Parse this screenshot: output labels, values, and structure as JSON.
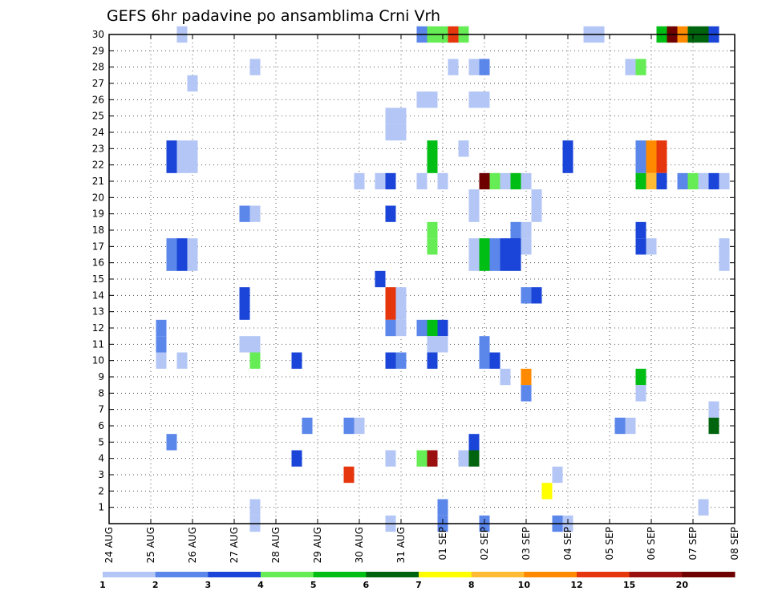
{
  "chart_data": {
    "type": "heatmap",
    "title": "GEFS 6hr padavine po ansamblima Crni Vrh",
    "x_tick_labels": [
      "24 AUG",
      "25 AUG",
      "26 AUG",
      "27 AUG",
      "28 AUG",
      "29 AUG",
      "30 AUG",
      "31 AUG",
      "01 SEP",
      "02 SEP",
      "03 SEP",
      "04 SEP",
      "05 SEP",
      "06 SEP",
      "07 SEP",
      "08 SEP"
    ],
    "y_tick_labels": [
      "1",
      "2",
      "3",
      "4",
      "5",
      "6",
      "7",
      "8",
      "9",
      "10",
      "11",
      "12",
      "13",
      "14",
      "15",
      "16",
      "17",
      "18",
      "19",
      "20",
      "21",
      "22",
      "23",
      "24",
      "25",
      "26",
      "27",
      "28",
      "29",
      "30"
    ],
    "y_range": [
      0,
      30
    ],
    "x_range_days": [
      0,
      15
    ],
    "grid": true,
    "colorbar": {
      "placement": "bottom",
      "labels": [
        "1",
        "2",
        "3",
        "4",
        "5",
        "6",
        "7",
        "8",
        "10",
        "12",
        "15",
        "20"
      ],
      "colors": [
        "#b3c6f5",
        "#5b86ea",
        "#1a45d8",
        "#66ec55",
        "#00be13",
        "#00640f",
        "#ffff00",
        "#ffbb33",
        "#ff8a00",
        "#e5360e",
        "#9a0f0f",
        "#6e0000"
      ]
    },
    "cell_fields": [
      "day_offset",
      "ensemble_member",
      "category_index"
    ],
    "cells": [
      [
        1.75,
        30,
        0
      ],
      [
        7.5,
        30,
        1
      ],
      [
        7.75,
        30,
        3
      ],
      [
        8.0,
        30,
        3
      ],
      [
        8.25,
        30,
        9
      ],
      [
        8.5,
        30,
        3
      ],
      [
        11.5,
        30,
        0
      ],
      [
        11.75,
        30,
        0
      ],
      [
        13.25,
        30,
        4
      ],
      [
        13.5,
        30,
        11
      ],
      [
        13.75,
        30,
        8
      ],
      [
        14.0,
        30,
        5
      ],
      [
        14.25,
        30,
        5
      ],
      [
        14.5,
        30,
        2
      ],
      [
        3.5,
        28,
        0
      ],
      [
        8.25,
        28,
        0
      ],
      [
        8.75,
        28,
        0
      ],
      [
        9.0,
        28,
        1
      ],
      [
        12.5,
        28,
        0
      ],
      [
        12.75,
        28,
        3
      ],
      [
        2.0,
        27,
        0
      ],
      [
        7.5,
        26,
        0
      ],
      [
        7.75,
        26,
        0
      ],
      [
        8.75,
        26,
        0
      ],
      [
        9.0,
        26,
        0
      ],
      [
        6.75,
        25,
        0
      ],
      [
        7.0,
        25,
        0
      ],
      [
        6.75,
        24,
        0
      ],
      [
        7.0,
        24,
        0
      ],
      [
        1.5,
        23,
        2
      ],
      [
        1.75,
        23,
        0
      ],
      [
        2.0,
        23,
        0
      ],
      [
        7.75,
        23,
        4
      ],
      [
        8.5,
        23,
        0
      ],
      [
        11.0,
        23,
        2
      ],
      [
        12.75,
        23,
        1
      ],
      [
        13.0,
        23,
        8
      ],
      [
        13.25,
        23,
        9
      ],
      [
        1.5,
        22,
        2
      ],
      [
        1.75,
        22,
        0
      ],
      [
        2.0,
        22,
        0
      ],
      [
        7.75,
        22,
        4
      ],
      [
        11.0,
        22,
        2
      ],
      [
        12.75,
        22,
        1
      ],
      [
        13.0,
        22,
        8
      ],
      [
        13.25,
        22,
        9
      ],
      [
        6.0,
        21,
        0
      ],
      [
        6.5,
        21,
        0
      ],
      [
        6.75,
        21,
        2
      ],
      [
        7.5,
        21,
        0
      ],
      [
        8.0,
        21,
        0
      ],
      [
        9.0,
        21,
        11
      ],
      [
        9.25,
        21,
        3
      ],
      [
        9.5,
        21,
        0
      ],
      [
        9.75,
        21,
        4
      ],
      [
        10.0,
        21,
        0
      ],
      [
        12.75,
        21,
        4
      ],
      [
        13.0,
        21,
        7
      ],
      [
        13.25,
        21,
        2
      ],
      [
        13.75,
        21,
        1
      ],
      [
        14.0,
        21,
        3
      ],
      [
        14.25,
        21,
        0
      ],
      [
        14.5,
        21,
        2
      ],
      [
        14.75,
        21,
        0
      ],
      [
        8.75,
        20,
        0
      ],
      [
        10.25,
        20,
        0
      ],
      [
        8.75,
        19,
        0
      ],
      [
        10.25,
        19,
        0
      ],
      [
        3.25,
        19,
        1
      ],
      [
        3.5,
        19,
        0
      ],
      [
        6.75,
        19,
        2
      ],
      [
        7.75,
        18,
        3
      ],
      [
        9.75,
        18,
        1
      ],
      [
        10.0,
        18,
        0
      ],
      [
        12.75,
        18,
        2
      ],
      [
        7.75,
        17,
        3
      ],
      [
        9.75,
        17,
        2
      ],
      [
        10.0,
        17,
        0
      ],
      [
        12.75,
        17,
        2
      ],
      [
        13.0,
        17,
        0
      ],
      [
        1.5,
        17,
        1
      ],
      [
        1.75,
        17,
        2
      ],
      [
        2.0,
        17,
        0
      ],
      [
        8.75,
        17,
        0
      ],
      [
        9.0,
        17,
        4
      ],
      [
        9.25,
        17,
        1
      ],
      [
        9.5,
        17,
        2
      ],
      [
        9.75,
        17,
        2
      ],
      [
        14.75,
        17,
        0
      ],
      [
        1.5,
        16,
        1
      ],
      [
        1.75,
        16,
        2
      ],
      [
        2.0,
        16,
        0
      ],
      [
        8.75,
        16,
        0
      ],
      [
        9.0,
        16,
        4
      ],
      [
        9.25,
        16,
        1
      ],
      [
        9.5,
        16,
        2
      ],
      [
        9.75,
        16,
        2
      ],
      [
        14.75,
        16,
        0
      ],
      [
        6.5,
        15,
        2
      ],
      [
        10.0,
        14,
        1
      ],
      [
        10.25,
        14,
        2
      ],
      [
        3.25,
        14,
        2
      ],
      [
        6.75,
        14,
        9
      ],
      [
        7.0,
        14,
        0
      ],
      [
        3.25,
        13,
        2
      ],
      [
        6.75,
        13,
        9
      ],
      [
        7.0,
        13,
        0
      ],
      [
        6.75,
        12,
        1
      ],
      [
        7.0,
        12,
        0
      ],
      [
        7.5,
        12,
        1
      ],
      [
        7.75,
        12,
        4
      ],
      [
        8.0,
        12,
        2
      ],
      [
        1.25,
        12,
        1
      ],
      [
        1.25,
        11,
        1
      ],
      [
        3.25,
        11,
        0
      ],
      [
        3.5,
        11,
        0
      ],
      [
        7.75,
        11,
        0
      ],
      [
        8.0,
        11,
        0
      ],
      [
        9.0,
        11,
        1
      ],
      [
        1.25,
        10,
        0
      ],
      [
        1.75,
        10,
        0
      ],
      [
        3.5,
        10,
        3
      ],
      [
        4.5,
        10,
        2
      ],
      [
        6.75,
        10,
        2
      ],
      [
        7.0,
        10,
        1
      ],
      [
        7.75,
        10,
        2
      ],
      [
        9.0,
        10,
        1
      ],
      [
        9.25,
        10,
        2
      ],
      [
        9.5,
        9,
        0
      ],
      [
        10.0,
        9,
        8
      ],
      [
        12.75,
        9,
        4
      ],
      [
        10.0,
        8,
        1
      ],
      [
        12.75,
        8,
        0
      ],
      [
        14.5,
        7,
        0
      ],
      [
        4.75,
        6,
        1
      ],
      [
        5.75,
        6,
        1
      ],
      [
        6.0,
        6,
        0
      ],
      [
        12.25,
        6,
        1
      ],
      [
        12.5,
        6,
        0
      ],
      [
        14.5,
        6,
        5
      ],
      [
        1.5,
        5,
        1
      ],
      [
        8.75,
        5,
        2
      ],
      [
        4.5,
        4,
        2
      ],
      [
        6.75,
        4,
        0
      ],
      [
        7.5,
        4,
        3
      ],
      [
        7.75,
        4,
        10
      ],
      [
        8.5,
        4,
        0
      ],
      [
        8.75,
        4,
        5
      ],
      [
        5.75,
        3,
        9
      ],
      [
        10.75,
        3,
        0
      ],
      [
        10.5,
        2,
        6
      ],
      [
        3.5,
        1,
        0
      ],
      [
        8.0,
        1,
        1
      ],
      [
        14.25,
        1,
        0
      ],
      [
        3.5,
        0,
        0
      ],
      [
        6.75,
        0,
        0
      ],
      [
        8.0,
        0,
        1
      ],
      [
        9.0,
        0,
        1
      ],
      [
        10.75,
        0,
        1
      ],
      [
        11.0,
        0,
        0
      ]
    ]
  }
}
